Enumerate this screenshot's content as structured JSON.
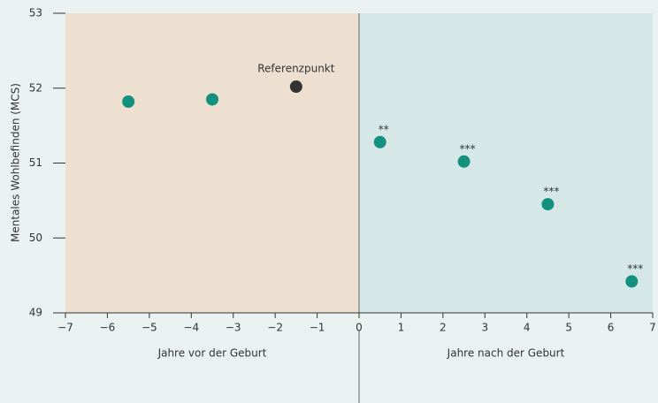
{
  "chart_data": {
    "type": "scatter",
    "y_label": "Mentales Wohlbefinden (MCS)",
    "x": [
      -5.5,
      -3.5,
      -1.5,
      0.5,
      2.5,
      4.5,
      6.5
    ],
    "values": [
      51.82,
      51.85,
      52.02,
      51.28,
      51.02,
      50.45,
      49.42
    ],
    "point_labels": [
      null,
      null,
      "Referenzpunkt",
      "**",
      "***",
      "***",
      "***"
    ],
    "colors": [
      "#14907f",
      "#14907f",
      "#333333",
      "#14907f",
      "#14907f",
      "#14907f",
      "#14907f"
    ],
    "regions": [
      {
        "label": "Jahre vor der Geburt",
        "from": -7,
        "to": 0,
        "color": "#ede0d0"
      },
      {
        "label": "Jahre nach der Geburt",
        "from": 0,
        "to": 7,
        "color": "#d6e7e7"
      }
    ],
    "xlim": [
      -7,
      7
    ],
    "xticks": [
      {
        "value": -7,
        "label": "−7"
      },
      {
        "value": -6,
        "label": "−6"
      },
      {
        "value": -5,
        "label": "−5"
      },
      {
        "value": -4,
        "label": "−4"
      },
      {
        "value": -3,
        "label": "−3"
      },
      {
        "value": -2,
        "label": "−2"
      },
      {
        "value": -1,
        "label": "−1"
      },
      0,
      1,
      2,
      3,
      4,
      5,
      6,
      7
    ],
    "ylim": [
      49,
      53
    ],
    "yticks": [
      49,
      50,
      51,
      52,
      53
    ]
  }
}
